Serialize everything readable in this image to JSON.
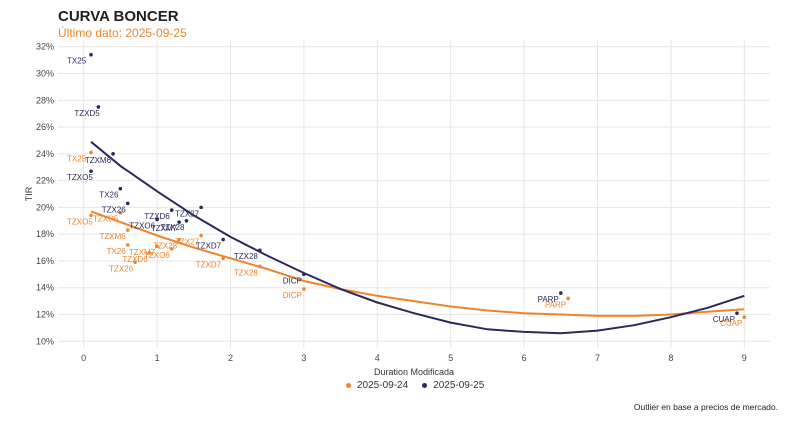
{
  "header": {
    "title": "CURVA BONCER",
    "subtitle": "Último dato: 2025-09-25"
  },
  "note": "Outlier en base a precios de mercado.",
  "colors": {
    "s1": "#f0842c",
    "s2": "#2a2a5a",
    "grid": "#e6e6e6"
  },
  "chart_data": {
    "type": "scatter",
    "xlabel": "Duration Modificada",
    "ylabel": "TIR",
    "xlim": [
      -0.35,
      9.35
    ],
    "ylim": [
      9.5,
      32.5
    ],
    "xticks": [
      0,
      1,
      2,
      3,
      4,
      5,
      6,
      7,
      8,
      9
    ],
    "yticks": [
      10,
      12,
      14,
      16,
      18,
      20,
      22,
      24,
      26,
      28,
      30,
      32
    ],
    "ytick_labels": [
      "10%",
      "12%",
      "14%",
      "16%",
      "18%",
      "20%",
      "22%",
      "24%",
      "26%",
      "28%",
      "30%",
      "32%"
    ],
    "grid": true,
    "legend_position": "bottom",
    "series": [
      {
        "name": "2025-09-24",
        "points": [
          {
            "label": "TX25",
            "x": 0.1,
            "y": 24.1
          },
          {
            "label": "TZXO5",
            "x": 0.1,
            "y": 19.4
          },
          {
            "label": "TZXD5",
            "x": 0.5,
            "y": 19.6
          },
          {
            "label": "TZXM6",
            "x": 0.6,
            "y": 18.3
          },
          {
            "label": "TX26",
            "x": 0.6,
            "y": 17.2
          },
          {
            "label": "TZXM7",
            "x": 1.0,
            "y": 17.1
          },
          {
            "label": "TZXD6",
            "x": 0.9,
            "y": 16.6
          },
          {
            "label": "TZX26",
            "x": 0.7,
            "y": 15.9
          },
          {
            "label": "TZXO6",
            "x": 1.2,
            "y": 16.9
          },
          {
            "label": "TZX28",
            "x": 1.3,
            "y": 17.6
          },
          {
            "label": "TZX27",
            "x": 1.6,
            "y": 17.9
          },
          {
            "label": "TZXD7",
            "x": 1.9,
            "y": 16.2
          },
          {
            "label": "TZX28",
            "x": 2.4,
            "y": 15.6
          },
          {
            "label": "DICP",
            "x": 3.0,
            "y": 13.9
          },
          {
            "label": "PARP",
            "x": 6.6,
            "y": 13.2
          },
          {
            "label": "CUAP",
            "x": 9.0,
            "y": 11.8
          }
        ],
        "trend": [
          {
            "x": 0.1,
            "y": 19.7
          },
          {
            "x": 0.5,
            "y": 18.9
          },
          {
            "x": 1.0,
            "y": 17.9
          },
          {
            "x": 1.5,
            "y": 17.0
          },
          {
            "x": 2.0,
            "y": 16.2
          },
          {
            "x": 2.5,
            "y": 15.4
          },
          {
            "x": 3.0,
            "y": 14.5
          },
          {
            "x": 3.5,
            "y": 13.9
          },
          {
            "x": 4.0,
            "y": 13.4
          },
          {
            "x": 4.5,
            "y": 13.0
          },
          {
            "x": 5.0,
            "y": 12.6
          },
          {
            "x": 5.5,
            "y": 12.3
          },
          {
            "x": 6.0,
            "y": 12.1
          },
          {
            "x": 6.5,
            "y": 12.0
          },
          {
            "x": 7.0,
            "y": 11.9
          },
          {
            "x": 7.5,
            "y": 11.9
          },
          {
            "x": 8.0,
            "y": 12.0
          },
          {
            "x": 8.5,
            "y": 12.2
          },
          {
            "x": 9.0,
            "y": 12.4
          }
        ]
      },
      {
        "name": "2025-09-25",
        "points": [
          {
            "label": "TX25",
            "x": 0.1,
            "y": 31.4
          },
          {
            "label": "TZXD5",
            "x": 0.2,
            "y": 27.5
          },
          {
            "label": "TZXM6",
            "x": 0.4,
            "y": 24.0
          },
          {
            "label": "TZXO5",
            "x": 0.1,
            "y": 22.7
          },
          {
            "label": "TX26",
            "x": 0.5,
            "y": 21.4
          },
          {
            "label": "TZX26",
            "x": 0.6,
            "y": 20.3
          },
          {
            "label": "TZXD6",
            "x": 1.2,
            "y": 19.8
          },
          {
            "label": "TZX27",
            "x": 1.6,
            "y": 20.0
          },
          {
            "label": "TZXO6",
            "x": 1.0,
            "y": 19.1
          },
          {
            "label": "TZX28",
            "x": 1.4,
            "y": 19.0
          },
          {
            "label": "TZXM7",
            "x": 1.3,
            "y": 18.9
          },
          {
            "label": "TZXD7",
            "x": 1.9,
            "y": 17.6
          },
          {
            "label": "TZX28",
            "x": 2.4,
            "y": 16.8
          },
          {
            "label": "DICP",
            "x": 3.0,
            "y": 15.0
          },
          {
            "label": "PARP",
            "x": 6.5,
            "y": 13.6
          },
          {
            "label": "CUAP",
            "x": 8.9,
            "y": 12.1
          }
        ],
        "trend": [
          {
            "x": 0.1,
            "y": 24.9
          },
          {
            "x": 0.5,
            "y": 23.1
          },
          {
            "x": 1.0,
            "y": 21.2
          },
          {
            "x": 1.5,
            "y": 19.4
          },
          {
            "x": 2.0,
            "y": 17.8
          },
          {
            "x": 2.5,
            "y": 16.4
          },
          {
            "x": 3.0,
            "y": 15.1
          },
          {
            "x": 3.5,
            "y": 13.9
          },
          {
            "x": 4.0,
            "y": 12.9
          },
          {
            "x": 4.5,
            "y": 12.1
          },
          {
            "x": 5.0,
            "y": 11.4
          },
          {
            "x": 5.5,
            "y": 10.9
          },
          {
            "x": 6.0,
            "y": 10.7
          },
          {
            "x": 6.5,
            "y": 10.6
          },
          {
            "x": 7.0,
            "y": 10.8
          },
          {
            "x": 7.5,
            "y": 11.2
          },
          {
            "x": 8.0,
            "y": 11.8
          },
          {
            "x": 8.5,
            "y": 12.5
          },
          {
            "x": 9.0,
            "y": 13.4
          }
        ]
      }
    ]
  }
}
